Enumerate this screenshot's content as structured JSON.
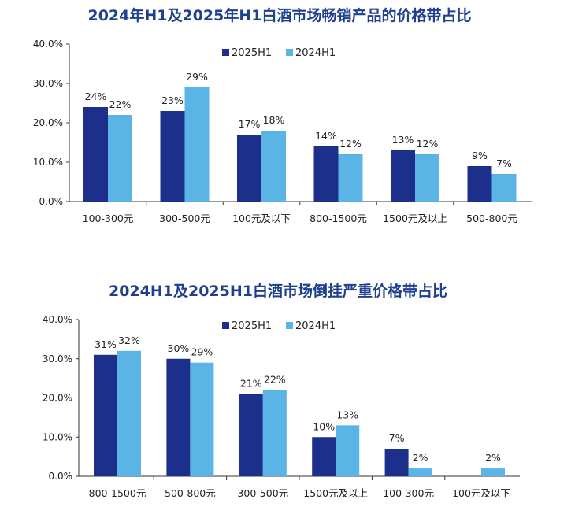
{
  "colors": {
    "title": "#1f3f8f",
    "series_2025": "#1c2f8a",
    "series_2024": "#5ab4e5",
    "axis": "#333333",
    "text": "#222222"
  },
  "chart_data": [
    {
      "type": "bar",
      "title": "2024年H1及2025年H1白酒市场畅销产品的价格带占比",
      "xlabel": "",
      "ylabel": "",
      "ylim": [
        0,
        40
      ],
      "yticks": [
        "0.0%",
        "10.0%",
        "20.0%",
        "30.0%",
        "40.0%"
      ],
      "grid": false,
      "legend_position": "top-center",
      "categories": [
        "100-300元",
        "300-500元",
        "100元及以下",
        "800-1500元",
        "1500元及以上",
        "500-800元"
      ],
      "series": [
        {
          "name": "2025H1",
          "values": [
            24,
            23,
            17,
            14,
            13,
            9
          ],
          "labels": [
            "24%",
            "23%",
            "17%",
            "14%",
            "13%",
            "9%"
          ]
        },
        {
          "name": "2024H1",
          "values": [
            22,
            29,
            18,
            12,
            12,
            7
          ],
          "labels": [
            "22%",
            "29%",
            "18%",
            "12%",
            "12%",
            "7%"
          ]
        }
      ]
    },
    {
      "type": "bar",
      "title": "2024H1及2025H1白酒市场倒挂严重价格带占比",
      "xlabel": "",
      "ylabel": "",
      "ylim": [
        0,
        40
      ],
      "yticks": [
        "0.0%",
        "10.0%",
        "20.0%",
        "30.0%",
        "40.0%"
      ],
      "grid": false,
      "legend_position": "top-center",
      "categories": [
        "800-1500元",
        "500-800元",
        "300-500元",
        "1500元及以上",
        "100-300元",
        "100元及以下"
      ],
      "series": [
        {
          "name": "2025H1",
          "values": [
            31,
            30,
            21,
            10,
            7,
            null
          ],
          "labels": [
            "31%",
            "30%",
            "21%",
            "10%",
            "7%",
            null
          ]
        },
        {
          "name": "2024H1",
          "values": [
            32,
            29,
            22,
            13,
            2,
            2
          ],
          "labels": [
            "32%",
            "29%",
            "22%",
            "13%",
            "2%",
            "2%"
          ]
        }
      ]
    }
  ]
}
